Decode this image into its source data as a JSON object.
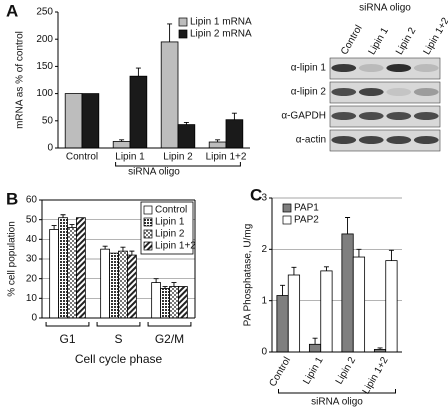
{
  "chart_data": [
    {
      "type": "bar",
      "panel_label": "A",
      "y_label": "mRNA as % of control",
      "x_label": "siRNA oligo",
      "categories": [
        "Control",
        "Lipin 1",
        "Lipin 2",
        "Lipin 1+2"
      ],
      "series": [
        {
          "name": "Lipin 1 mRNA",
          "color": "#bdbdbd",
          "pattern": "none",
          "values": [
            100,
            12,
            195,
            11
          ],
          "errors": [
            0,
            3,
            33,
            4
          ]
        },
        {
          "name": "Lipin 2 mRNA",
          "color": "#1a1a1a",
          "pattern": "none",
          "values": [
            100,
            132,
            43,
            52
          ],
          "errors": [
            0,
            15,
            4,
            12
          ]
        }
      ],
      "ylim": [
        0,
        250
      ],
      "yticks": [
        0,
        50,
        100,
        150,
        200,
        250
      ],
      "grid": false,
      "legend": "upper right"
    },
    {
      "type": "bar",
      "panel_label": "B",
      "y_label": "% cell population",
      "x_label": "Cell cycle phase",
      "categories": [
        "G1",
        "S",
        "G2/M"
      ],
      "series": [
        {
          "name": "Control",
          "color": "#ffffff",
          "pattern": "none",
          "values": [
            45,
            35,
            18
          ],
          "errors": [
            2,
            1.5,
            2
          ]
        },
        {
          "name": "Lipin 1",
          "color": "#555555",
          "pattern": "dots",
          "values": [
            51,
            33,
            15
          ],
          "errors": [
            1.5,
            0,
            1
          ]
        },
        {
          "name": "Lipin 2",
          "color": "#999999",
          "pattern": "checker",
          "values": [
            46,
            34,
            16
          ],
          "errors": [
            1.5,
            2,
            2
          ]
        },
        {
          "name": "Lipin 1+2",
          "color": "#333333",
          "pattern": "diagonal",
          "values": [
            51,
            32,
            16
          ],
          "errors": [
            0,
            2,
            0
          ]
        }
      ],
      "ylim": [
        0,
        60
      ],
      "yticks": [
        0,
        10,
        20,
        30,
        40,
        50,
        60
      ],
      "grid": true,
      "legend": "upper right"
    },
    {
      "type": "bar",
      "panel_label": "C",
      "y_label": "PA Phosphatase, U/mg",
      "x_label": "siRNA oligo",
      "categories": [
        "Control",
        "Lipin 1",
        "Lipin 2",
        "Lipin 1+2"
      ],
      "series": [
        {
          "name": "PAP1",
          "color": "#7f7f7f",
          "pattern": "none",
          "values": [
            1.1,
            0.15,
            2.3,
            0.05
          ],
          "errors": [
            0.2,
            0.12,
            0.32,
            0.03
          ]
        },
        {
          "name": "PAP2",
          "color": "#ffffff",
          "pattern": "none",
          "values": [
            1.5,
            1.58,
            1.85,
            1.78
          ],
          "errors": [
            0.15,
            0.08,
            0.15,
            0.2
          ]
        }
      ],
      "ylim": [
        0,
        3
      ],
      "yticks": [
        0,
        1,
        2,
        3
      ],
      "grid": true,
      "legend": "upper left"
    }
  ],
  "blot": {
    "header": "siRNA oligo",
    "lanes": [
      "Control",
      "Lipin 1",
      "Lipin 2",
      "Lipin 1+2"
    ],
    "rows": [
      "α-lipin 1",
      "α-lipin 2",
      "α-GAPDH",
      "α-actin"
    ]
  }
}
